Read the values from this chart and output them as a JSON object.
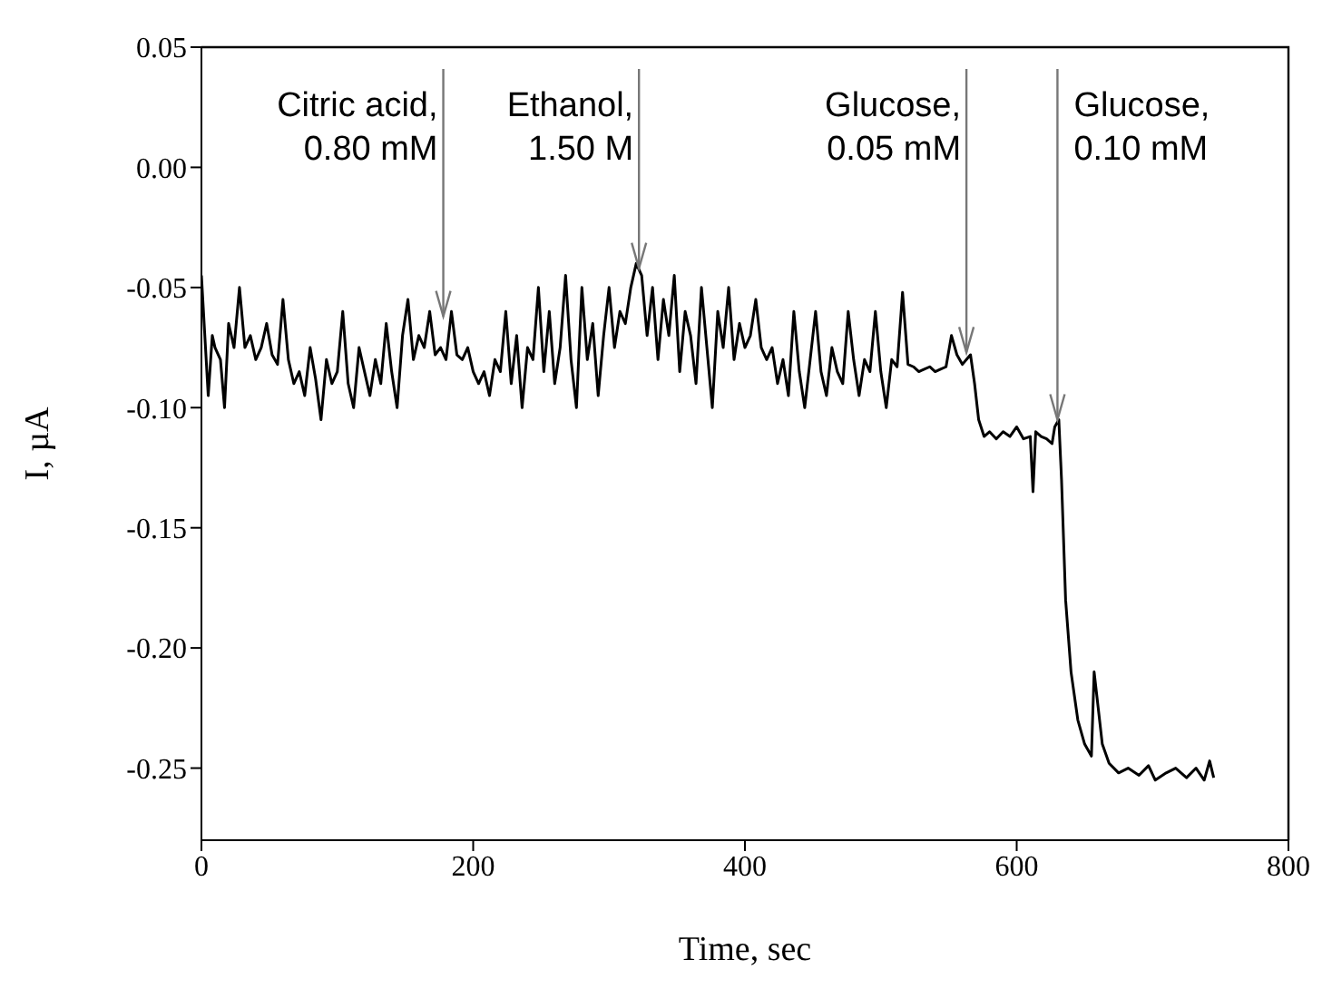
{
  "chart_data": {
    "type": "line",
    "xlabel": "Time, sec",
    "ylabel": "I, µA",
    "color": "#000000",
    "x": [
      0,
      3,
      5,
      8,
      10,
      14,
      17,
      20,
      24,
      28,
      32,
      36,
      40,
      44,
      48,
      52,
      56,
      60,
      64,
      68,
      72,
      76,
      80,
      84,
      88,
      92,
      96,
      100,
      104,
      108,
      112,
      116,
      120,
      124,
      128,
      132,
      136,
      140,
      144,
      148,
      152,
      156,
      160,
      164,
      168,
      172,
      176,
      180,
      184,
      188,
      192,
      196,
      200,
      204,
      208,
      212,
      216,
      220,
      224,
      228,
      232,
      236,
      240,
      244,
      248,
      252,
      256,
      260,
      264,
      268,
      272,
      276,
      280,
      284,
      288,
      292,
      296,
      300,
      304,
      308,
      312,
      316,
      320,
      324,
      328,
      332,
      336,
      340,
      344,
      348,
      352,
      356,
      360,
      364,
      368,
      372,
      376,
      380,
      384,
      388,
      392,
      396,
      400,
      404,
      408,
      412,
      416,
      420,
      424,
      428,
      432,
      436,
      440,
      444,
      448,
      452,
      456,
      460,
      464,
      468,
      472,
      476,
      480,
      484,
      488,
      492,
      496,
      500,
      504,
      508,
      512,
      516,
      520,
      524,
      528,
      532,
      536,
      540,
      544,
      548,
      552,
      556,
      560,
      563,
      566,
      569,
      572,
      576,
      580,
      585,
      590,
      595,
      600,
      605,
      610,
      612,
      614,
      618,
      622,
      626,
      628,
      631,
      633,
      636,
      640,
      645,
      650,
      655,
      657,
      660,
      663,
      668,
      675,
      682,
      690,
      697,
      702,
      710,
      717,
      725,
      732,
      738,
      742,
      745
    ],
    "values": [
      -0.045,
      -0.075,
      -0.095,
      -0.07,
      -0.075,
      -0.08,
      -0.1,
      -0.065,
      -0.075,
      -0.05,
      -0.075,
      -0.07,
      -0.08,
      -0.075,
      -0.065,
      -0.078,
      -0.082,
      -0.055,
      -0.08,
      -0.09,
      -0.085,
      -0.095,
      -0.075,
      -0.088,
      -0.105,
      -0.08,
      -0.09,
      -0.085,
      -0.06,
      -0.09,
      -0.1,
      -0.075,
      -0.085,
      -0.095,
      -0.08,
      -0.09,
      -0.065,
      -0.085,
      -0.1,
      -0.07,
      -0.055,
      -0.08,
      -0.07,
      -0.075,
      -0.06,
      -0.078,
      -0.075,
      -0.08,
      -0.06,
      -0.078,
      -0.08,
      -0.075,
      -0.085,
      -0.09,
      -0.085,
      -0.095,
      -0.08,
      -0.085,
      -0.06,
      -0.09,
      -0.07,
      -0.1,
      -0.075,
      -0.08,
      -0.05,
      -0.085,
      -0.06,
      -0.09,
      -0.075,
      -0.045,
      -0.08,
      -0.1,
      -0.05,
      -0.08,
      -0.065,
      -0.095,
      -0.07,
      -0.05,
      -0.075,
      -0.06,
      -0.065,
      -0.05,
      -0.04,
      -0.045,
      -0.07,
      -0.05,
      -0.08,
      -0.055,
      -0.07,
      -0.045,
      -0.085,
      -0.06,
      -0.07,
      -0.09,
      -0.05,
      -0.075,
      -0.1,
      -0.06,
      -0.075,
      -0.05,
      -0.08,
      -0.065,
      -0.075,
      -0.07,
      -0.055,
      -0.075,
      -0.08,
      -0.075,
      -0.09,
      -0.08,
      -0.095,
      -0.06,
      -0.085,
      -0.1,
      -0.08,
      -0.06,
      -0.085,
      -0.095,
      -0.075,
      -0.085,
      -0.09,
      -0.06,
      -0.08,
      -0.095,
      -0.08,
      -0.085,
      -0.06,
      -0.085,
      -0.1,
      -0.08,
      -0.083,
      -0.052,
      -0.082,
      -0.083,
      -0.085,
      -0.084,
      -0.083,
      -0.085,
      -0.084,
      -0.083,
      -0.07,
      -0.078,
      -0.082,
      -0.08,
      -0.078,
      -0.09,
      -0.105,
      -0.112,
      -0.11,
      -0.113,
      -0.11,
      -0.112,
      -0.108,
      -0.113,
      -0.112,
      -0.135,
      -0.11,
      -0.112,
      -0.113,
      -0.115,
      -0.108,
      -0.105,
      -0.13,
      -0.18,
      -0.21,
      -0.23,
      -0.24,
      -0.245,
      -0.21,
      -0.225,
      -0.24,
      -0.248,
      -0.252,
      -0.25,
      -0.253,
      -0.249,
      -0.255,
      -0.252,
      -0.25,
      -0.254,
      -0.25,
      -0.255,
      -0.247,
      -0.254
    ],
    "xlim": [
      0,
      800
    ],
    "xticks": [
      0,
      200,
      400,
      600,
      800
    ],
    "ylim": [
      -0.28,
      0.05
    ],
    "yticks": [
      {
        "value": -0.25,
        "label": "-0.25"
      },
      {
        "value": -0.2,
        "label": "-0.20"
      },
      {
        "value": -0.15,
        "label": "-0.15"
      },
      {
        "value": -0.1,
        "label": "-0.10"
      },
      {
        "value": -0.05,
        "label": "-0.05"
      },
      {
        "value": 0,
        "label": "0.00"
      },
      {
        "value": 0.05,
        "label": "0.05"
      }
    ],
    "grid": false,
    "legend": false,
    "marker": "none",
    "line_style": "solid",
    "annotations": [
      {
        "text": "Citric acid,\n0.80 mM",
        "x": 178,
        "y": -0.062
      },
      {
        "text": "Ethanol,\n1.50 M",
        "x": 322,
        "y": -0.042
      },
      {
        "text": "Glucose,\n0.05 mM",
        "x": 563,
        "y": -0.077
      },
      {
        "text": "Glucose,\n0.10 mM",
        "x": 630,
        "y": -0.105
      }
    ]
  }
}
